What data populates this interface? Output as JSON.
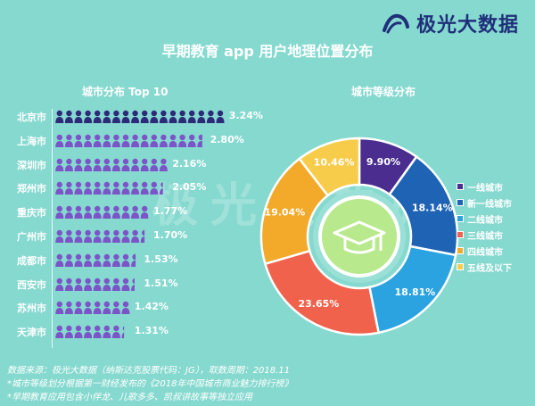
{
  "brand": {
    "name": "极光大数据",
    "icon": "aurora-logo-icon",
    "color": "#1f2f7a"
  },
  "header": {
    "title": "早期教育 app 用户地理位置分布"
  },
  "watermark": {
    "text": "极光大数据"
  },
  "left_panel": {
    "title": "城市分布 Top 10"
  },
  "right_panel": {
    "title": "城市等级分布"
  },
  "footnotes": {
    "line1": "数据来源：极光大数据（纳斯达克股票代码：JG），取数周期：2018.11",
    "line2": "*城市等级划分根据第一财经发布的《2018年中国城市商业魅力排行榜》",
    "line3": "*早期教育应用包含小伴龙、儿歌多多、凯叔讲故事等独立应用"
  },
  "chart_data": [
    {
      "type": "bar",
      "title": "城市分布 Top 10",
      "categories": [
        "北京市",
        "上海市",
        "深圳市",
        "郑州市",
        "重庆市",
        "广州市",
        "成都市",
        "西安市",
        "苏州市",
        "天津市"
      ],
      "values": [
        3.24,
        2.8,
        2.16,
        2.05,
        1.77,
        1.7,
        1.53,
        1.51,
        1.42,
        1.31
      ],
      "value_labels": [
        "3.24%",
        "2.80%",
        "2.16%",
        "2.05%",
        "1.77%",
        "1.70%",
        "1.53%",
        "1.51%",
        "1.42%",
        "1.31%"
      ],
      "unit": "%",
      "icon": "person-icon",
      "colors": [
        "#2e2a7a",
        "#7b55c8"
      ]
    },
    {
      "type": "pie",
      "title": "城市等级分布",
      "categories": [
        "一线城市",
        "新一线城市",
        "二线城市",
        "三线城市",
        "四线城市",
        "五线及以下"
      ],
      "values": [
        9.9,
        18.14,
        18.81,
        23.65,
        19.04,
        10.46
      ],
      "value_labels": [
        "9.90%",
        "18.14%",
        "18.81%",
        "23.65%",
        "19.04%",
        "10.46%"
      ],
      "colors": [
        "#4a2d8f",
        "#1f63b5",
        "#2aa3e0",
        "#f0624b",
        "#f3a929",
        "#f7cc4a"
      ],
      "center_icon": "graduation-cap-icon",
      "legend_position": "right"
    }
  ]
}
